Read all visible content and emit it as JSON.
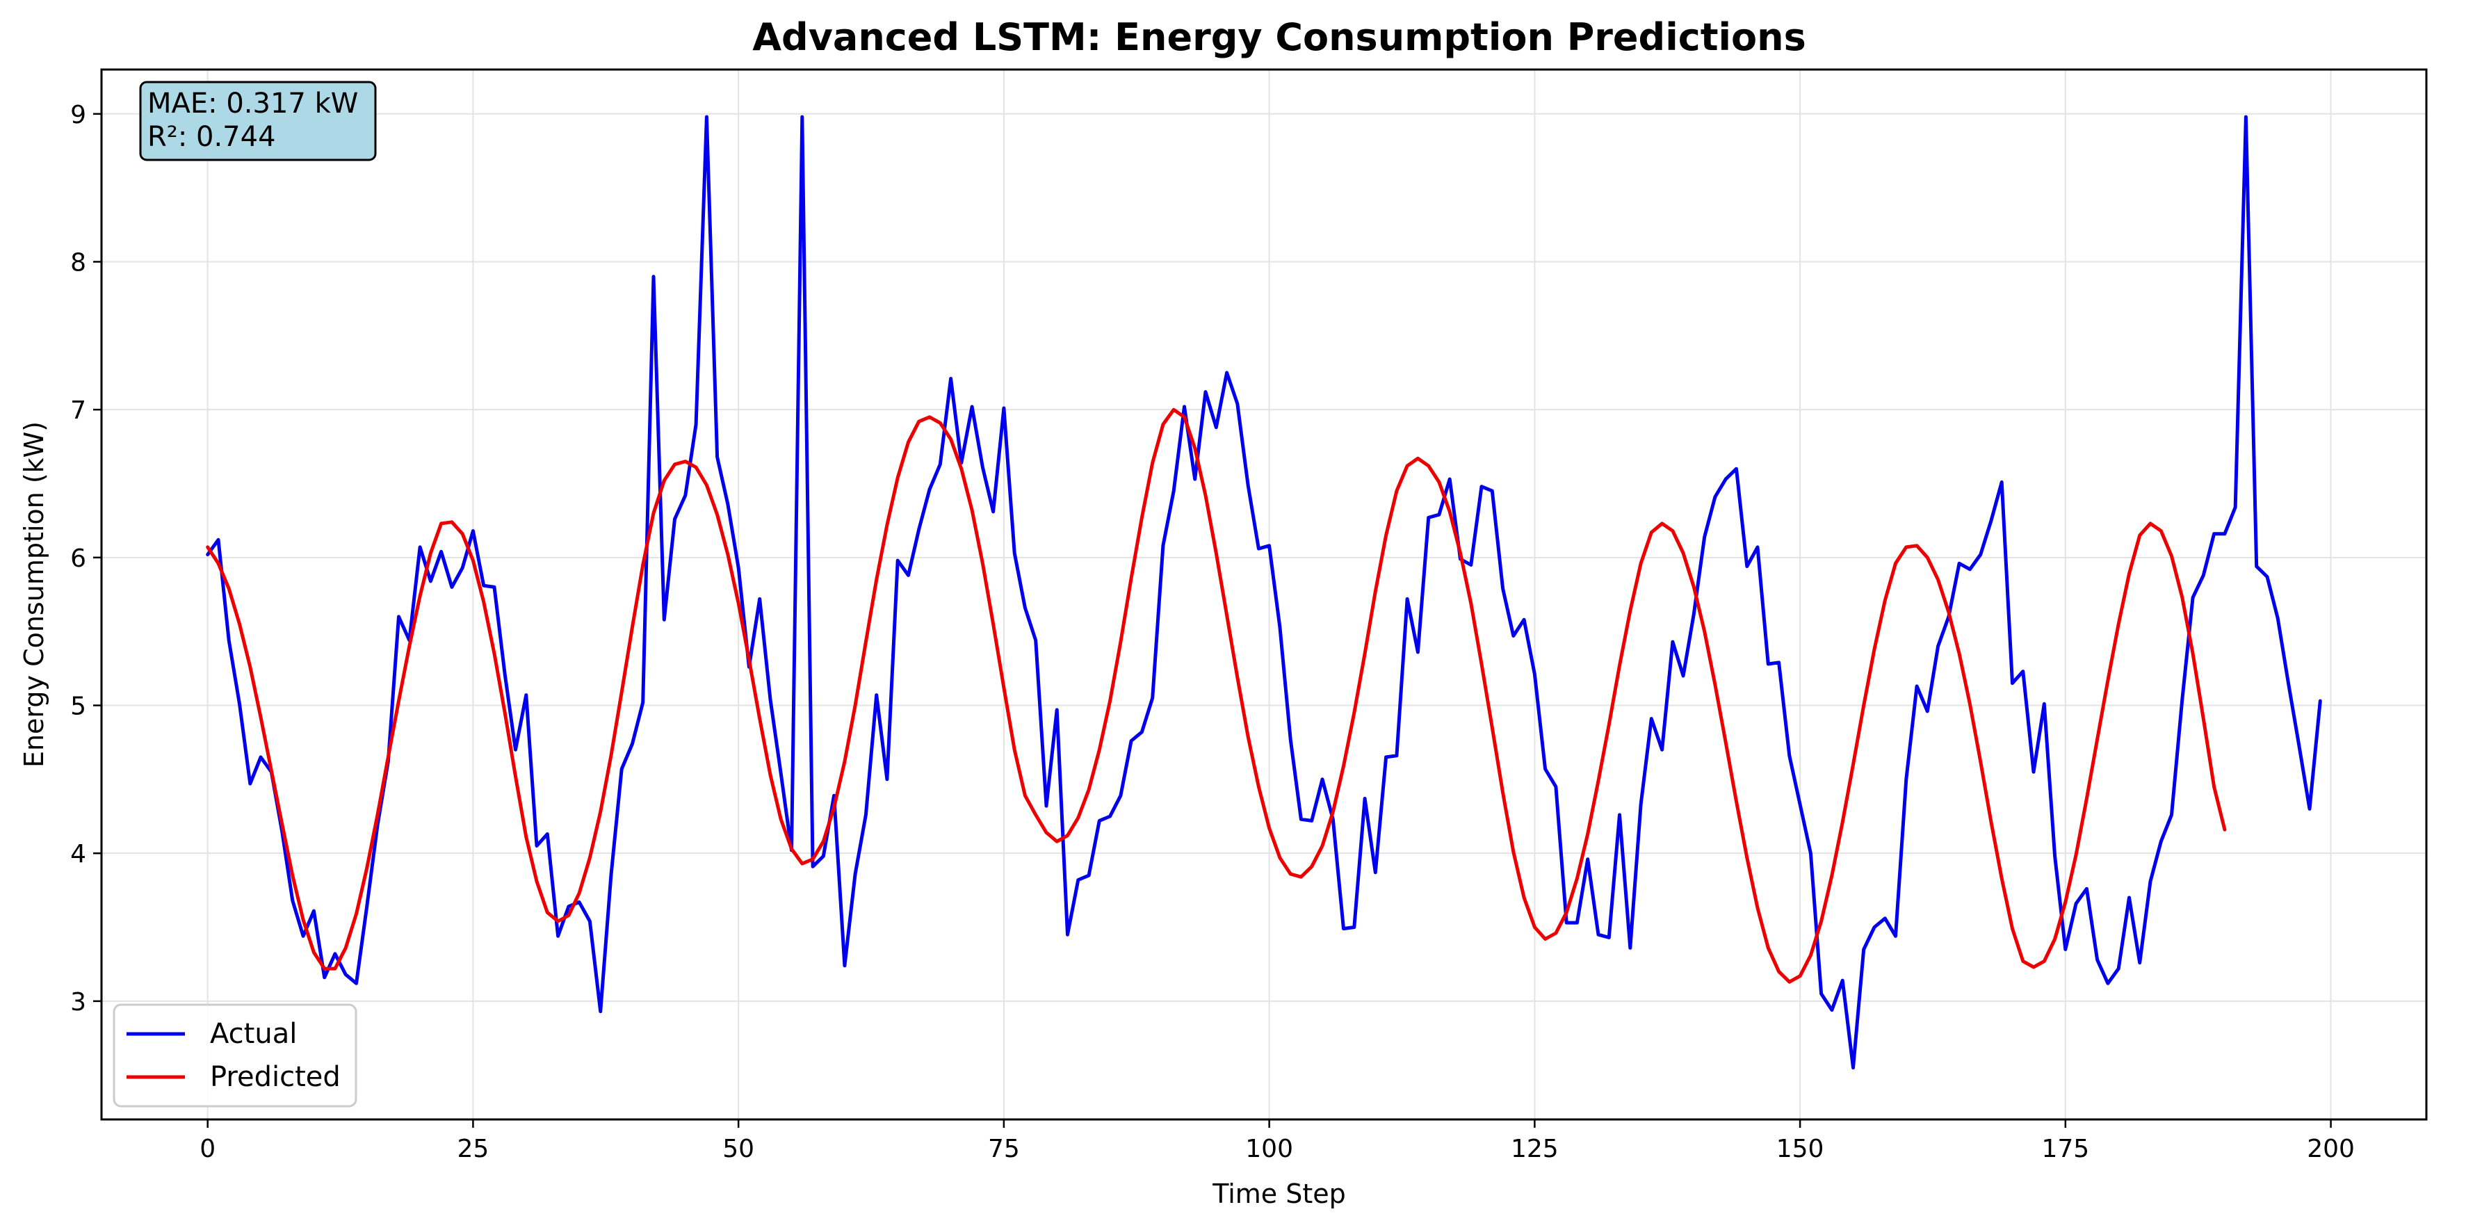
{
  "chart_data": {
    "type": "line",
    "title": "Advanced LSTM: Energy Consumption Predictions",
    "xlabel": "Time Step",
    "ylabel": "Energy Consumption (kW)",
    "xlim": [
      -10,
      209
    ],
    "ylim": [
      2.2,
      9.3
    ],
    "xticks": [
      0,
      25,
      50,
      75,
      100,
      125,
      150,
      175,
      200
    ],
    "yticks": [
      3,
      4,
      5,
      6,
      7,
      8,
      9
    ],
    "grid": true,
    "legend_position": "lower-left",
    "metrics": {
      "mae": "MAE: 0.317 kW",
      "r2": "R²: 0.744"
    },
    "series": [
      {
        "name": "Actual",
        "color": "#0000ee",
        "values": [
          6.02,
          6.12,
          5.44,
          5.01,
          4.47,
          4.65,
          4.55,
          4.15,
          3.68,
          3.44,
          3.61,
          3.16,
          3.32,
          3.18,
          3.12,
          3.64,
          4.19,
          4.62,
          5.6,
          5.44,
          6.07,
          5.84,
          6.04,
          5.8,
          5.93,
          6.18,
          5.81,
          5.8,
          5.21,
          4.7,
          5.07,
          4.05,
          4.13,
          3.44,
          3.64,
          3.67,
          3.54,
          2.93,
          3.85,
          4.57,
          4.74,
          5.02,
          7.9,
          5.58,
          6.26,
          6.42,
          6.9,
          8.98,
          6.68,
          6.36,
          5.93,
          5.26,
          5.72,
          5.04,
          4.54,
          4.02,
          8.98,
          3.91,
          3.98,
          4.39,
          3.24,
          3.86,
          4.26,
          5.07,
          4.5,
          5.98,
          5.88,
          6.19,
          6.46,
          6.63,
          7.21,
          6.64,
          7.02,
          6.61,
          6.31,
          7.01,
          6.03,
          5.66,
          5.44,
          4.32,
          4.97,
          3.45,
          3.82,
          3.85,
          4.22,
          4.25,
          4.39,
          4.76,
          4.82,
          5.05,
          6.08,
          6.45,
          7.02,
          6.53,
          7.12,
          6.88,
          7.25,
          7.04,
          6.49,
          6.06,
          6.08,
          5.53,
          4.77,
          4.23,
          4.22,
          4.5,
          4.23,
          3.49,
          3.5,
          4.37,
          3.87,
          4.65,
          4.66,
          5.72,
          5.36,
          6.27,
          6.29,
          6.53,
          5.99,
          5.95,
          6.48,
          6.45,
          5.79,
          5.47,
          5.58,
          5.21,
          4.57,
          4.45,
          3.53,
          3.53,
          3.96,
          3.45,
          3.43,
          4.26,
          3.36,
          4.33,
          4.91,
          4.7,
          5.43,
          5.2,
          5.62,
          6.14,
          6.41,
          6.53,
          6.6,
          5.94,
          6.07,
          5.28,
          5.29,
          4.66,
          4.33,
          4.0,
          3.05,
          2.94,
          3.14,
          2.55,
          3.35,
          3.5,
          3.56,
          3.44,
          4.5,
          5.13,
          4.96,
          5.4,
          5.6,
          5.96,
          5.92,
          6.02,
          6.25,
          6.51,
          5.15,
          5.23,
          4.55,
          5.01,
          3.98,
          3.35,
          3.66,
          3.76,
          3.28,
          3.12,
          3.22,
          3.7,
          3.26,
          3.81,
          4.08,
          4.26,
          5.04,
          5.73,
          5.88,
          6.16,
          6.16,
          6.34,
          8.98,
          5.94,
          5.87,
          5.59,
          5.15,
          4.73,
          4.3,
          5.03
        ]
      },
      {
        "name": "Predicted",
        "color": "#ee0000",
        "values": [
          6.07,
          5.96,
          5.79,
          5.55,
          5.26,
          4.92,
          4.56,
          4.2,
          3.85,
          3.55,
          3.33,
          3.22,
          3.22,
          3.36,
          3.59,
          3.9,
          4.26,
          4.65,
          5.03,
          5.4,
          5.74,
          6.03,
          6.23,
          6.24,
          6.16,
          5.98,
          5.7,
          5.35,
          4.95,
          4.52,
          4.11,
          3.81,
          3.6,
          3.54,
          3.58,
          3.73,
          3.97,
          4.28,
          4.66,
          5.09,
          5.53,
          5.95,
          6.3,
          6.52,
          6.63,
          6.65,
          6.61,
          6.49,
          6.29,
          6.02,
          5.69,
          5.31,
          4.91,
          4.53,
          4.23,
          4.03,
          3.93,
          3.96,
          4.08,
          4.31,
          4.62,
          5.0,
          5.43,
          5.85,
          6.22,
          6.54,
          6.78,
          6.92,
          6.95,
          6.91,
          6.8,
          6.6,
          6.32,
          5.96,
          5.55,
          5.12,
          4.7,
          4.39,
          4.26,
          4.14,
          4.08,
          4.12,
          4.24,
          4.43,
          4.7,
          5.03,
          5.43,
          5.86,
          6.27,
          6.64,
          6.9,
          7.0,
          6.95,
          6.74,
          6.42,
          6.03,
          5.61,
          5.19,
          4.79,
          4.45,
          4.17,
          3.97,
          3.86,
          3.84,
          3.91,
          4.05,
          4.28,
          4.59,
          4.95,
          5.35,
          5.77,
          6.15,
          6.45,
          6.62,
          6.67,
          6.62,
          6.51,
          6.31,
          6.03,
          5.69,
          5.28,
          4.85,
          4.41,
          4.01,
          3.7,
          3.5,
          3.42,
          3.46,
          3.6,
          3.83,
          4.13,
          4.49,
          4.87,
          5.27,
          5.64,
          5.96,
          6.17,
          6.23,
          6.18,
          6.03,
          5.8,
          5.5,
          5.14,
          4.75,
          4.35,
          3.97,
          3.63,
          3.36,
          3.2,
          3.13,
          3.17,
          3.31,
          3.54,
          3.85,
          4.21,
          4.6,
          5.0,
          5.38,
          5.71,
          5.96,
          6.07,
          6.08,
          6.0,
          5.85,
          5.63,
          5.35,
          5.01,
          4.62,
          4.21,
          3.83,
          3.49,
          3.27,
          3.23,
          3.27,
          3.42,
          3.67,
          3.99,
          4.37,
          4.77,
          5.17,
          5.55,
          5.89,
          6.15,
          6.23,
          6.18,
          6.01,
          5.73,
          5.35,
          4.91,
          4.45,
          4.16
        ]
      }
    ]
  }
}
